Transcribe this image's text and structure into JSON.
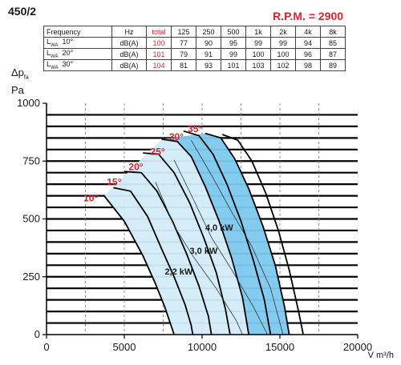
{
  "header": {
    "model": "450/2",
    "rpm": "R.P.M. = 2900"
  },
  "noise_table": {
    "headers": [
      "Frequency",
      "Hz",
      "total",
      "125",
      "250",
      "500",
      "1k",
      "2k",
      "4k",
      "8k"
    ],
    "rows": [
      {
        "label": "L",
        "sub": "WA",
        "angle": "10°",
        "unit": "dB(A)",
        "total": "100",
        "values": [
          "77",
          "90",
          "95",
          "99",
          "99",
          "94",
          "85"
        ]
      },
      {
        "label": "L",
        "sub": "WA",
        "angle": "20°",
        "unit": "dB(A)",
        "total": "101",
        "values": [
          "79",
          "91",
          "99",
          "100",
          "100",
          "96",
          "87"
        ]
      },
      {
        "label": "L",
        "sub": "WA",
        "angle": "30°",
        "unit": "dB(A)",
        "total": "104",
        "values": [
          "81",
          "93",
          "101",
          "103",
          "102",
          "98",
          "89"
        ]
      }
    ]
  },
  "axes": {
    "ylabel_main": "Δp",
    "ylabel_sub": "fa",
    "ylabel_unit": "Pa",
    "xlabel": "V m³/h"
  },
  "colors": {
    "accent_red": "#d4272e",
    "band_light": "#d3ecf9",
    "band_dark": "#7cc9ef"
  },
  "chart_data": {
    "type": "line",
    "xlim": [
      0,
      20000
    ],
    "ylim": [
      0,
      1000
    ],
    "x_ticks": [
      0,
      5000,
      10000,
      15000,
      20000
    ],
    "y_ticks": [
      0,
      250,
      500,
      750,
      1000
    ],
    "grid": true,
    "series": [
      {
        "name": "10°",
        "points": [
          [
            3700,
            600
          ],
          [
            5000,
            490
          ],
          [
            6200,
            340
          ],
          [
            7000,
            220
          ],
          [
            7600,
            120
          ],
          [
            8000,
            40
          ],
          [
            8200,
            0
          ]
        ]
      },
      {
        "name": "15°",
        "points": [
          [
            4300,
            635
          ],
          [
            5400,
            620
          ],
          [
            6500,
            510
          ],
          [
            7400,
            370
          ],
          [
            8200,
            250
          ],
          [
            8900,
            130
          ],
          [
            9300,
            40
          ],
          [
            9400,
            0
          ]
        ]
      },
      {
        "name": "20°",
        "points": [
          [
            5000,
            705
          ],
          [
            6100,
            700
          ],
          [
            7100,
            620
          ],
          [
            8100,
            490
          ],
          [
            9000,
            350
          ],
          [
            9800,
            210
          ],
          [
            10400,
            80
          ],
          [
            10600,
            0
          ]
        ]
      },
      {
        "name": "25°",
        "points": [
          [
            6200,
            785
          ],
          [
            7200,
            780
          ],
          [
            8200,
            700
          ],
          [
            9200,
            570
          ],
          [
            10100,
            420
          ],
          [
            10900,
            270
          ],
          [
            11500,
            110
          ],
          [
            11800,
            0
          ]
        ]
      },
      {
        "name": "30°",
        "points": [
          [
            7400,
            845
          ],
          [
            8400,
            835
          ],
          [
            9300,
            770
          ],
          [
            10200,
            640
          ],
          [
            11100,
            490
          ],
          [
            11900,
            330
          ],
          [
            12600,
            160
          ],
          [
            13000,
            0
          ]
        ]
      },
      {
        "name": "35°",
        "points": [
          [
            8800,
            880
          ],
          [
            9800,
            860
          ],
          [
            10700,
            780
          ],
          [
            11600,
            650
          ],
          [
            12500,
            490
          ],
          [
            13300,
            320
          ],
          [
            14000,
            150
          ],
          [
            14400,
            0
          ]
        ]
      },
      {
        "name": "",
        "points": [
          [
            10200,
            870
          ],
          [
            11200,
            850
          ],
          [
            12100,
            760
          ],
          [
            13000,
            630
          ],
          [
            13900,
            470
          ],
          [
            14700,
            300
          ],
          [
            15300,
            120
          ],
          [
            15600,
            0
          ]
        ]
      },
      {
        "name": "",
        "points": [
          [
            11300,
            865
          ],
          [
            12300,
            840
          ],
          [
            13200,
            750
          ],
          [
            14100,
            610
          ],
          [
            14900,
            450
          ],
          [
            15600,
            280
          ],
          [
            16200,
            100
          ],
          [
            16500,
            0
          ]
        ]
      }
    ],
    "power_lines": [
      {
        "label": "2,2 kW",
        "points": [
          [
            7000,
            660
          ],
          [
            8200,
            470
          ],
          [
            9400,
            340
          ],
          [
            10900,
            200
          ],
          [
            12200,
            60
          ],
          [
            12600,
            0
          ]
        ]
      },
      {
        "label": "3,0 kW",
        "points": [
          [
            8200,
            755
          ],
          [
            9400,
            590
          ],
          [
            10600,
            420
          ],
          [
            11900,
            280
          ],
          [
            13300,
            120
          ],
          [
            14200,
            0
          ]
        ]
      },
      {
        "label": "4,0 kW",
        "points": [
          [
            9300,
            840
          ],
          [
            10600,
            690
          ],
          [
            11900,
            530
          ],
          [
            13200,
            380
          ],
          [
            14400,
            200
          ],
          [
            15200,
            0
          ]
        ]
      }
    ],
    "angle_labels": [
      "10°",
      "15°",
      "20°",
      "25°",
      "30°",
      "35°"
    ],
    "kw_labels": [
      "2,2 kW",
      "3,0 kW",
      "4,0 kW"
    ]
  }
}
